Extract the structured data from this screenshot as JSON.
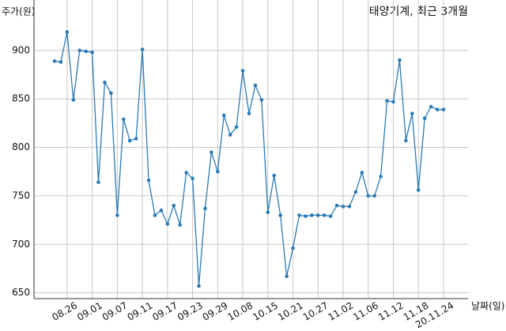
{
  "chart_data": {
    "type": "line",
    "title": "태양기계, 최근 3개월",
    "y_label": "주가(원)",
    "x_label": "날짜(일)",
    "categories": [
      null,
      null,
      "08.26",
      null,
      null,
      null,
      "09.01",
      null,
      null,
      null,
      "09.07",
      null,
      null,
      null,
      "09.11",
      null,
      null,
      null,
      "09.17",
      null,
      null,
      null,
      "09.23",
      null,
      null,
      null,
      "09.29",
      null,
      null,
      null,
      "10.08",
      null,
      null,
      null,
      "10.15",
      null,
      null,
      null,
      "10.21",
      null,
      null,
      null,
      "10.27",
      null,
      null,
      null,
      "11.02",
      null,
      null,
      null,
      "11.06",
      null,
      null,
      null,
      "11.12",
      null,
      null,
      null,
      "11.18",
      null,
      null,
      null,
      "20.11.24"
    ],
    "series": [
      {
        "name": "주가",
        "color": "#2b7bb4",
        "values": [
          889,
          888,
          919,
          849,
          900,
          899,
          898,
          764,
          867,
          856,
          730,
          829,
          807,
          809,
          901,
          766,
          730,
          735,
          721,
          740,
          720,
          774,
          768,
          657,
          737,
          795,
          775,
          833,
          813,
          821,
          879,
          835,
          864,
          849,
          733,
          771,
          730,
          667,
          696,
          730,
          729,
          730,
          730,
          730,
          729,
          740,
          739,
          739,
          754,
          774,
          750,
          750,
          770,
          848,
          847,
          890,
          807,
          835,
          756,
          830,
          842,
          839,
          839
        ]
      }
    ],
    "ylim": [
      644,
      952
    ],
    "yticks": [
      650,
      700,
      750,
      800,
      850,
      900
    ],
    "grid": true
  }
}
